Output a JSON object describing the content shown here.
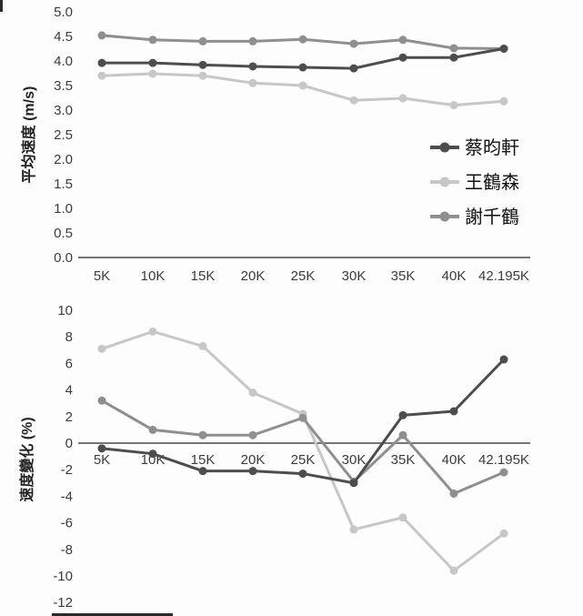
{
  "colors": {
    "background": "#fdfdfd",
    "axis_line": "#757575",
    "tick_text": "#3c3c3c",
    "title_text": "#222222",
    "legend_text": "#111111",
    "crop_artifact": "#2a2a2a",
    "series_dark": "#4d4d4d",
    "series_light": "#c7c7c7",
    "series_medium": "#8f8f8f"
  },
  "chart_data": [
    {
      "type": "line",
      "title": "",
      "xlabel": "",
      "ylabel": "平均速度 (m/s)",
      "categories": [
        "5K",
        "10K",
        "15K",
        "20K",
        "25K",
        "30K",
        "35K",
        "40K",
        "42.195K"
      ],
      "series": [
        {
          "name": "蔡昀軒",
          "color": "#4d4d4d",
          "values": [
            3.96,
            3.96,
            3.92,
            3.89,
            3.87,
            3.85,
            4.07,
            4.07,
            4.25
          ]
        },
        {
          "name": "王鶴森",
          "color": "#c7c7c7",
          "values": [
            3.7,
            3.74,
            3.7,
            3.55,
            3.5,
            3.2,
            3.24,
            3.1,
            3.18
          ]
        },
        {
          "name": "謝千鶴",
          "color": "#8f8f8f",
          "values": [
            4.52,
            4.43,
            4.4,
            4.4,
            4.44,
            4.35,
            4.43,
            4.26,
            4.25
          ]
        }
      ],
      "ylim": [
        0.0,
        5.0
      ],
      "y_tick_step": 0.5,
      "y_tick_decimals": 1,
      "grid": false,
      "legend": true,
      "legend_position": "right-middle"
    },
    {
      "type": "line",
      "title": "",
      "xlabel": "",
      "ylabel": "速度變化 (%)",
      "categories": [
        "5K",
        "10K",
        "15K",
        "20K",
        "25K",
        "30K",
        "35K",
        "40K",
        "42.195K"
      ],
      "series": [
        {
          "name": "蔡昀軒",
          "color": "#4d4d4d",
          "values": [
            -0.4,
            -0.8,
            -2.1,
            -2.1,
            -2.3,
            -3.0,
            2.1,
            2.4,
            6.3
          ]
        },
        {
          "name": "王鶴森",
          "color": "#c7c7c7",
          "values": [
            7.1,
            8.4,
            7.3,
            3.8,
            2.2,
            -6.5,
            -5.6,
            -9.6,
            -6.8
          ]
        },
        {
          "name": "謝千鶴",
          "color": "#8f8f8f",
          "values": [
            3.2,
            1.0,
            0.6,
            0.6,
            1.9,
            -2.9,
            0.6,
            -3.8,
            -2.2
          ]
        }
      ],
      "ylim": [
        -12,
        10
      ],
      "y_tick_step": 2,
      "y_tick_decimals": 0,
      "grid": false,
      "legend": false,
      "zero_line": true
    }
  ]
}
